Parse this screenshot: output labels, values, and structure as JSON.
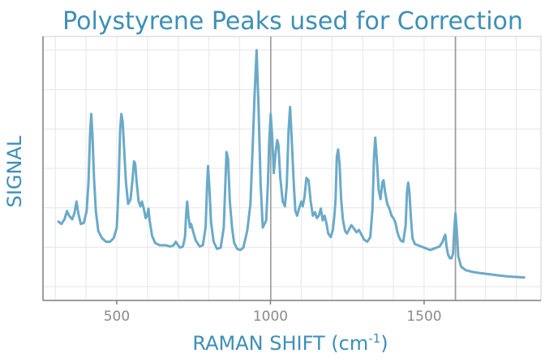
{
  "chart_data": {
    "type": "line",
    "title": "Polystyrene Peaks used for Correction",
    "xlabel_main": "RAMAN SHIFT (cm",
    "xlabel_sup": "-1",
    "xlabel_end": ")",
    "ylabel": "SIGNAL",
    "xlim": [
      260,
      1880
    ],
    "ylim": [
      0,
      1
    ],
    "xticks": [
      500,
      1000,
      1500
    ],
    "xtick_labels": [
      "500",
      "1000",
      "1500"
    ],
    "grid": true,
    "reference_lines_x": [
      1001,
      1602
    ],
    "colors": {
      "line": "#6aaac8",
      "title": "#3d8fb5",
      "axis_label": "#3d8fb5",
      "tick": "#8a8a8a"
    },
    "series": [
      {
        "values": [
          [
            310,
            0.275
          ],
          [
            320,
            0.265
          ],
          [
            330,
            0.285
          ],
          [
            338,
            0.32
          ],
          [
            345,
            0.3
          ],
          [
            355,
            0.285
          ],
          [
            362,
            0.31
          ],
          [
            369,
            0.36
          ],
          [
            375,
            0.31
          ],
          [
            383,
            0.265
          ],
          [
            393,
            0.27
          ],
          [
            402,
            0.32
          ],
          [
            408,
            0.44
          ],
          [
            413,
            0.64
          ],
          [
            417,
            0.73
          ],
          [
            421,
            0.64
          ],
          [
            426,
            0.46
          ],
          [
            432,
            0.32
          ],
          [
            440,
            0.235
          ],
          [
            452,
            0.205
          ],
          [
            465,
            0.19
          ],
          [
            478,
            0.19
          ],
          [
            490,
            0.205
          ],
          [
            500,
            0.25
          ],
          [
            506,
            0.42
          ],
          [
            511,
            0.66
          ],
          [
            515,
            0.73
          ],
          [
            519,
            0.7
          ],
          [
            524,
            0.58
          ],
          [
            530,
            0.44
          ],
          [
            537,
            0.35
          ],
          [
            545,
            0.37
          ],
          [
            551,
            0.45
          ],
          [
            556,
            0.53
          ],
          [
            560,
            0.52
          ],
          [
            565,
            0.44
          ],
          [
            571,
            0.36
          ],
          [
            577,
            0.34
          ],
          [
            582,
            0.36
          ],
          [
            588,
            0.33
          ],
          [
            594,
            0.29
          ],
          [
            599,
            0.3
          ],
          [
            603,
            0.33
          ],
          [
            607,
            0.28
          ],
          [
            615,
            0.215
          ],
          [
            625,
            0.185
          ],
          [
            640,
            0.175
          ],
          [
            660,
            0.175
          ],
          [
            675,
            0.17
          ],
          [
            685,
            0.175
          ],
          [
            692,
            0.19
          ],
          [
            697,
            0.18
          ],
          [
            705,
            0.165
          ],
          [
            715,
            0.17
          ],
          [
            722,
            0.21
          ],
          [
            726,
            0.31
          ],
          [
            729,
            0.36
          ],
          [
            733,
            0.3
          ],
          [
            738,
            0.25
          ],
          [
            742,
            0.265
          ],
          [
            748,
            0.235
          ],
          [
            757,
            0.195
          ],
          [
            770,
            0.17
          ],
          [
            780,
            0.175
          ],
          [
            789,
            0.25
          ],
          [
            794,
            0.43
          ],
          [
            797,
            0.51
          ],
          [
            801,
            0.43
          ],
          [
            807,
            0.27
          ],
          [
            815,
            0.19
          ],
          [
            826,
            0.16
          ],
          [
            838,
            0.165
          ],
          [
            848,
            0.25
          ],
          [
            853,
            0.43
          ],
          [
            857,
            0.57
          ],
          [
            862,
            0.54
          ],
          [
            868,
            0.36
          ],
          [
            875,
            0.25
          ],
          [
            882,
            0.185
          ],
          [
            892,
            0.16
          ],
          [
            902,
            0.155
          ],
          [
            912,
            0.165
          ],
          [
            925,
            0.24
          ],
          [
            935,
            0.35
          ],
          [
            941,
            0.55
          ],
          [
            948,
            0.8
          ],
          [
            955,
            1.0
          ],
          [
            961,
            0.77
          ],
          [
            968,
            0.44
          ],
          [
            975,
            0.25
          ],
          [
            986,
            0.28
          ],
          [
            992,
            0.44
          ],
          [
            996,
            0.62
          ],
          [
            1001,
            0.73
          ],
          [
            1006,
            0.63
          ],
          [
            1011,
            0.48
          ],
          [
            1017,
            0.57
          ],
          [
            1022,
            0.62
          ],
          [
            1026,
            0.6
          ],
          [
            1032,
            0.46
          ],
          [
            1040,
            0.36
          ],
          [
            1047,
            0.34
          ],
          [
            1053,
            0.43
          ],
          [
            1059,
            0.66
          ],
          [
            1064,
            0.76
          ],
          [
            1069,
            0.63
          ],
          [
            1076,
            0.43
          ],
          [
            1081,
            0.32
          ],
          [
            1087,
            0.3
          ],
          [
            1093,
            0.33
          ],
          [
            1100,
            0.36
          ],
          [
            1105,
            0.34
          ],
          [
            1111,
            0.38
          ],
          [
            1117,
            0.46
          ],
          [
            1124,
            0.45
          ],
          [
            1131,
            0.36
          ],
          [
            1138,
            0.3
          ],
          [
            1145,
            0.315
          ],
          [
            1151,
            0.29
          ],
          [
            1157,
            0.3
          ],
          [
            1164,
            0.33
          ],
          [
            1170,
            0.28
          ],
          [
            1176,
            0.3
          ],
          [
            1182,
            0.27
          ],
          [
            1188,
            0.225
          ],
          [
            1196,
            0.21
          ],
          [
            1203,
            0.24
          ],
          [
            1208,
            0.3
          ],
          [
            1212,
            0.37
          ],
          [
            1216,
            0.55
          ],
          [
            1220,
            0.58
          ],
          [
            1225,
            0.52
          ],
          [
            1230,
            0.37
          ],
          [
            1236,
            0.28
          ],
          [
            1243,
            0.235
          ],
          [
            1249,
            0.225
          ],
          [
            1255,
            0.24
          ],
          [
            1263,
            0.26
          ],
          [
            1272,
            0.245
          ],
          [
            1280,
            0.23
          ],
          [
            1288,
            0.24
          ],
          [
            1296,
            0.22
          ],
          [
            1304,
            0.2
          ],
          [
            1315,
            0.19
          ],
          [
            1325,
            0.21
          ],
          [
            1332,
            0.33
          ],
          [
            1337,
            0.55
          ],
          [
            1341,
            0.63
          ],
          [
            1346,
            0.54
          ],
          [
            1352,
            0.41
          ],
          [
            1358,
            0.37
          ],
          [
            1364,
            0.44
          ],
          [
            1368,
            0.45
          ],
          [
            1373,
            0.4
          ],
          [
            1380,
            0.35
          ],
          [
            1387,
            0.33
          ],
          [
            1394,
            0.3
          ],
          [
            1400,
            0.29
          ],
          [
            1407,
            0.27
          ],
          [
            1413,
            0.23
          ],
          [
            1418,
            0.21
          ],
          [
            1424,
            0.195
          ],
          [
            1432,
            0.19
          ],
          [
            1440,
            0.26
          ],
          [
            1444,
            0.4
          ],
          [
            1448,
            0.44
          ],
          [
            1452,
            0.4
          ],
          [
            1457,
            0.29
          ],
          [
            1462,
            0.205
          ],
          [
            1470,
            0.18
          ],
          [
            1480,
            0.175
          ],
          [
            1490,
            0.17
          ],
          [
            1500,
            0.165
          ],
          [
            1510,
            0.16
          ],
          [
            1520,
            0.155
          ],
          [
            1530,
            0.16
          ],
          [
            1540,
            0.165
          ],
          [
            1550,
            0.17
          ],
          [
            1560,
            0.19
          ],
          [
            1565,
            0.21
          ],
          [
            1569,
            0.22
          ],
          [
            1573,
            0.17
          ],
          [
            1578,
            0.135
          ],
          [
            1584,
            0.12
          ],
          [
            1589,
            0.12
          ],
          [
            1594,
            0.14
          ],
          [
            1598,
            0.24
          ],
          [
            1602,
            0.31
          ],
          [
            1606,
            0.24
          ],
          [
            1611,
            0.13
          ],
          [
            1620,
            0.085
          ],
          [
            1635,
            0.07
          ],
          [
            1655,
            0.063
          ],
          [
            1680,
            0.058
          ],
          [
            1710,
            0.053
          ],
          [
            1740,
            0.048
          ],
          [
            1770,
            0.044
          ],
          [
            1800,
            0.041
          ],
          [
            1825,
            0.039
          ]
        ]
      }
    ]
  }
}
